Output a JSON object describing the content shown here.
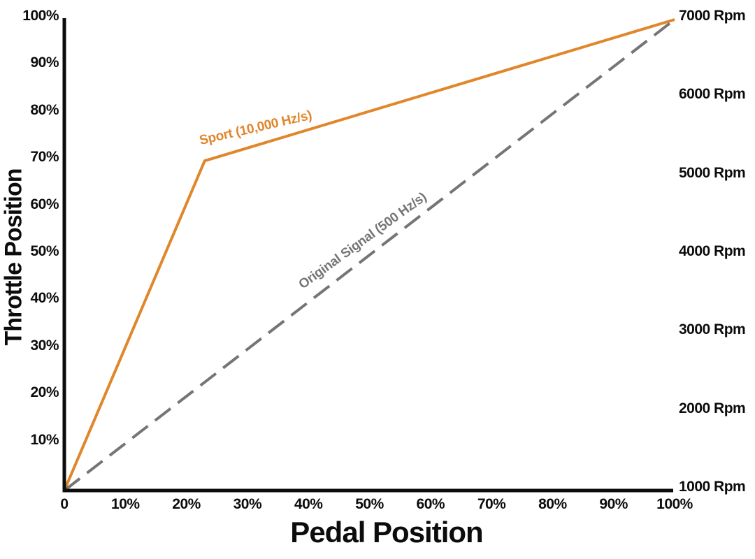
{
  "page": {
    "background_color": "#ffffff"
  },
  "chart_data": {
    "type": "line",
    "title": "",
    "xlabel": "Pedal Position",
    "ylabel": "Throttle Position",
    "xlim": [
      0,
      100
    ],
    "ylim": [
      0,
      100
    ],
    "grid": false,
    "legend_position": "inline-rotated-labels-on-lines",
    "axis_color": "#0c0c0c",
    "x_ticks": [
      {
        "value": 0,
        "label": "0"
      },
      {
        "value": 10,
        "label": "10%"
      },
      {
        "value": 20,
        "label": "20%"
      },
      {
        "value": 30,
        "label": "30%"
      },
      {
        "value": 40,
        "label": "40%"
      },
      {
        "value": 50,
        "label": "50%"
      },
      {
        "value": 60,
        "label": "60%"
      },
      {
        "value": 70,
        "label": "70%"
      },
      {
        "value": 80,
        "label": "80%"
      },
      {
        "value": 90,
        "label": "90%"
      },
      {
        "value": 100,
        "label": "100%"
      }
    ],
    "y_ticks": [
      {
        "value": 10,
        "label": "10%"
      },
      {
        "value": 20,
        "label": "20%"
      },
      {
        "value": 30,
        "label": "30%"
      },
      {
        "value": 40,
        "label": "40%"
      },
      {
        "value": 50,
        "label": "50%"
      },
      {
        "value": 60,
        "label": "60%"
      },
      {
        "value": 70,
        "label": "70%"
      },
      {
        "value": 80,
        "label": "80%"
      },
      {
        "value": 90,
        "label": "90%"
      },
      {
        "value": 100,
        "label": "100%"
      }
    ],
    "right_axis_labels": [
      {
        "value": 0,
        "label": "1000 Rpm"
      },
      {
        "value": 16.667,
        "label": "2000 Rpm"
      },
      {
        "value": 33.333,
        "label": "3000 Rpm"
      },
      {
        "value": 50,
        "label": "4000 Rpm"
      },
      {
        "value": 66.667,
        "label": "5000 Rpm"
      },
      {
        "value": 83.333,
        "label": "6000 Rpm"
      },
      {
        "value": 100,
        "label": "7000 Rpm"
      }
    ],
    "series": [
      {
        "name": "Sport (10,000 Hz/s)",
        "color": "#E0862B",
        "line_style": "solid",
        "line_width": 4,
        "points": [
          [
            0,
            0
          ],
          [
            23,
            70
          ],
          [
            100,
            100
          ]
        ]
      },
      {
        "name": "Original Signal (500 Hz/s)",
        "color": "#757575",
        "line_style": "dashed",
        "line_width": 4,
        "points": [
          [
            0,
            0
          ],
          [
            100,
            100
          ]
        ]
      }
    ]
  }
}
